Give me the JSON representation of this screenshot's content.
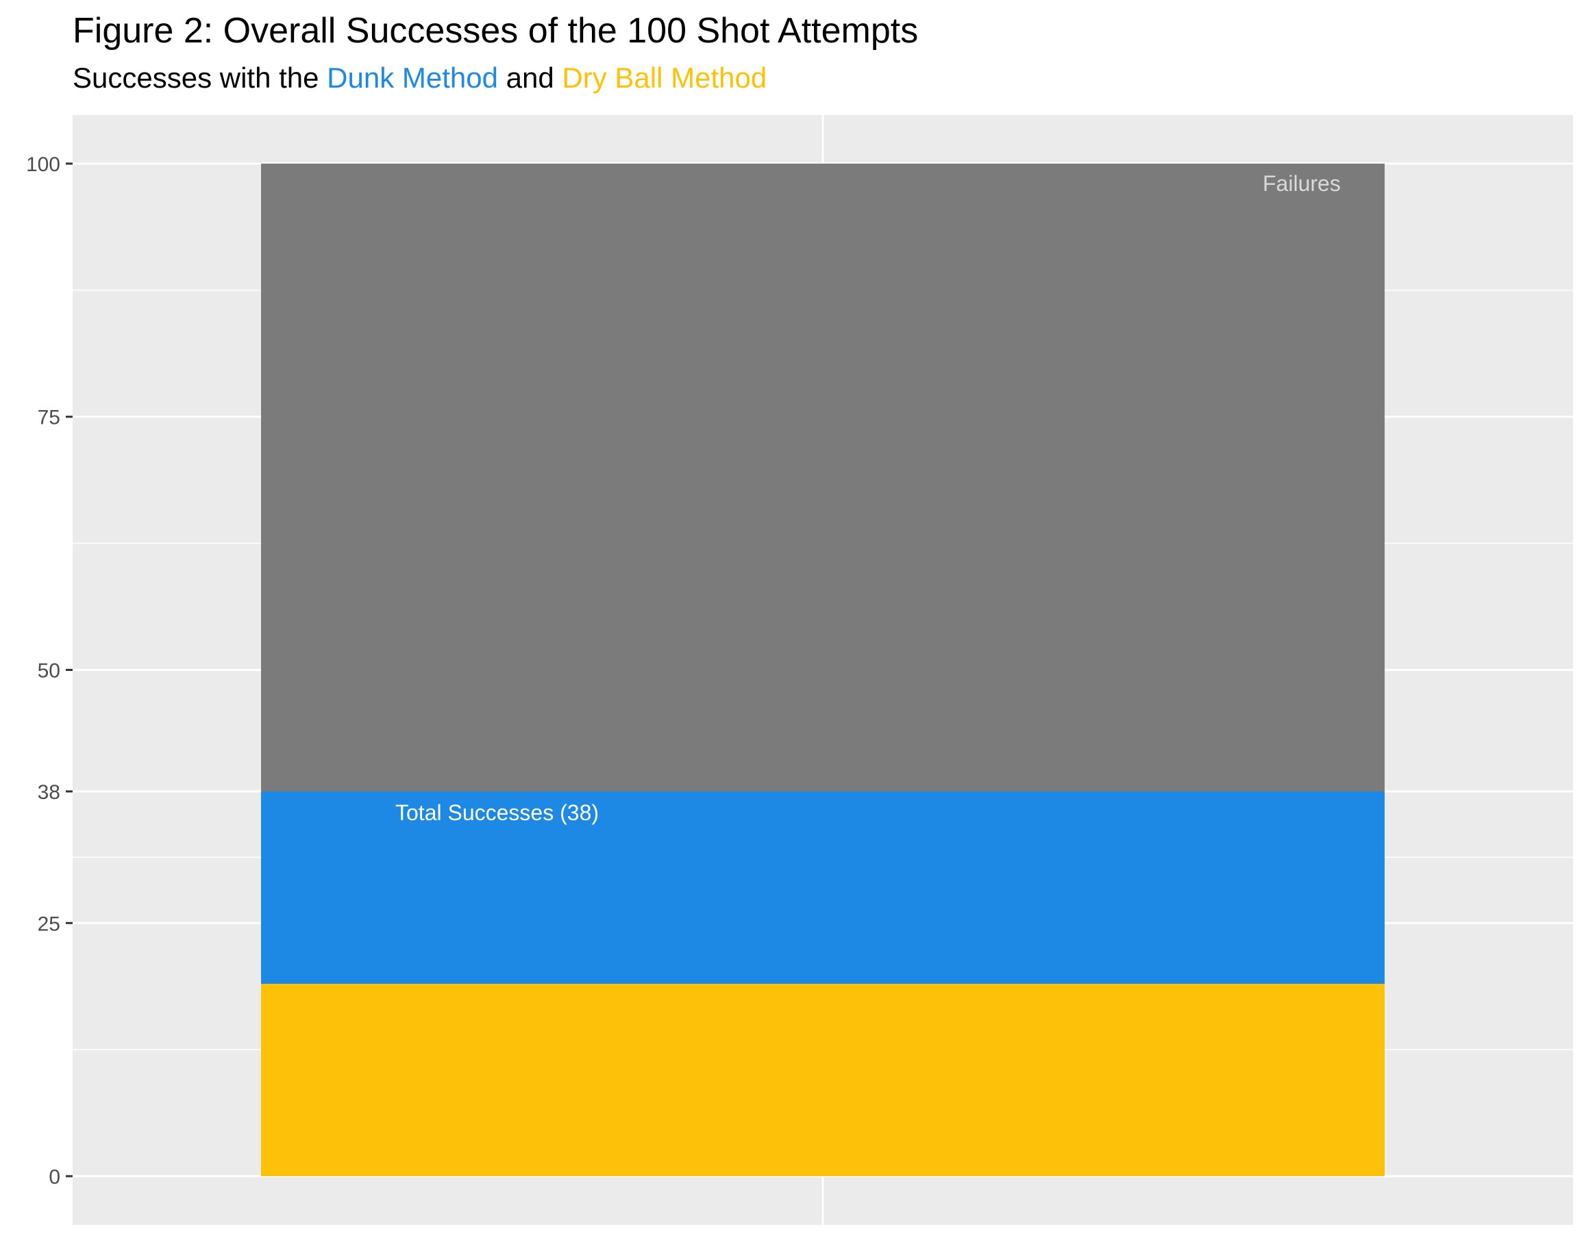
{
  "chart_data": {
    "type": "bar",
    "stacked": true,
    "title": "Figure 2: Overall Successes of the 100 Shot Attempts",
    "subtitle": {
      "parts": [
        {
          "text": "Successes with the ",
          "color": "#000000"
        },
        {
          "text": "Dunk Method",
          "color": "#1E88E5"
        },
        {
          "text": " and ",
          "color": "#000000"
        },
        {
          "text": "Dry Ball Method",
          "color": "#FFC107"
        }
      ]
    },
    "xlabel": "",
    "ylabel": "",
    "ylim": [
      -4.8,
      104.8
    ],
    "yticks": [
      0,
      25,
      38,
      50,
      75,
      100
    ],
    "ytick_labels": [
      "0",
      "25",
      "38",
      "50",
      "75",
      "100"
    ],
    "ygrid_minor": [
      12.5,
      62.5,
      87.5,
      31.5
    ],
    "grid": true,
    "series": [
      {
        "segment": "dry_ball",
        "values": [
          19
        ],
        "color": "#FDC10A"
      },
      {
        "segment": "dunk",
        "values": [
          19
        ],
        "color": "#1E88E5"
      },
      {
        "segment": "failures",
        "values": [
          62
        ],
        "color": "#7B7B7B"
      }
    ],
    "annotations": [
      {
        "text": "Total Successes (38)",
        "y": 38,
        "color": "#FFFFFF"
      },
      {
        "text": "Failures",
        "y": 100,
        "color": "#D9D9D9"
      }
    ],
    "colors": {
      "panel_bg": "#EBEBEB",
      "grid": "#FFFFFF"
    }
  }
}
